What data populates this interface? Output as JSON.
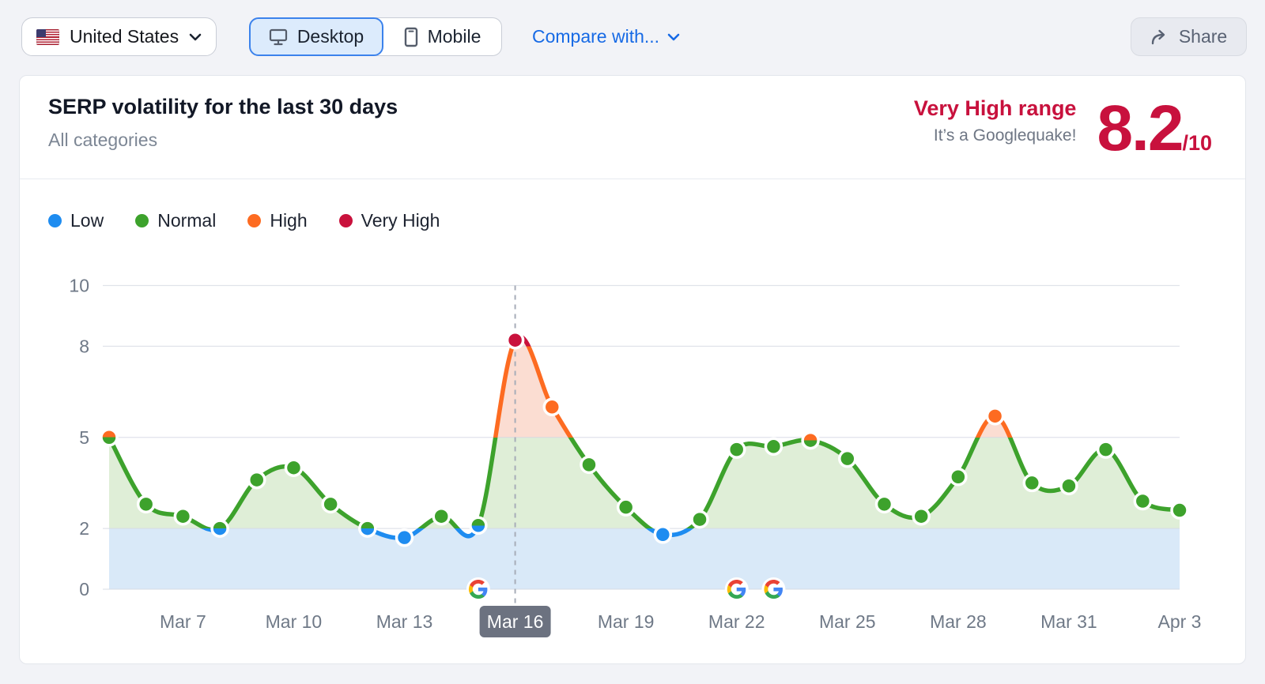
{
  "toolbar": {
    "country_label": "United States",
    "device_toggle": {
      "desktop_label": "Desktop",
      "mobile_label": "Mobile",
      "selected": "Desktop"
    },
    "compare_label": "Compare with...",
    "share_label": "Share"
  },
  "header": {
    "title": "SERP volatility for the last 30 days",
    "subtitle": "All categories",
    "range_label": "Very High range",
    "range_sublabel": "It’s a Googlequake!",
    "score": "8.2",
    "score_suffix": "/10"
  },
  "chart_data": {
    "type": "line",
    "title": "SERP volatility for the last 30 days",
    "x": [
      "Mar 5",
      "Mar 6",
      "Mar 7",
      "Mar 8",
      "Mar 9",
      "Mar 10",
      "Mar 11",
      "Mar 12",
      "Mar 13",
      "Mar 14",
      "Mar 15",
      "Mar 16",
      "Mar 17",
      "Mar 18",
      "Mar 19",
      "Mar 20",
      "Mar 21",
      "Mar 22",
      "Mar 23",
      "Mar 24",
      "Mar 25",
      "Mar 26",
      "Mar 27",
      "Mar 28",
      "Mar 29",
      "Mar 30",
      "Mar 31",
      "Apr 1",
      "Apr 2",
      "Apr 3"
    ],
    "values": [
      5.0,
      2.8,
      2.4,
      2.0,
      3.6,
      4.0,
      2.8,
      2.0,
      1.7,
      2.4,
      2.1,
      8.2,
      6.0,
      4.1,
      2.7,
      1.8,
      2.3,
      4.6,
      4.7,
      4.9,
      4.3,
      2.8,
      2.4,
      3.7,
      5.7,
      3.5,
      3.4,
      4.6,
      2.9,
      2.6
    ],
    "point_levels": [
      "orange/green",
      "green",
      "green",
      "green/blue",
      "green",
      "green",
      "green",
      "green/blue",
      "blue",
      "green",
      "green/blue",
      "red",
      "orange",
      "green",
      "green",
      "blue",
      "green",
      "green",
      "green",
      "orange/green",
      "green",
      "green",
      "green",
      "green",
      "orange",
      "green",
      "green",
      "green",
      "green",
      "green"
    ],
    "legend": [
      {
        "label": "Low",
        "color": "#1e8cf0"
      },
      {
        "label": "Normal",
        "color": "#3da22c"
      },
      {
        "label": "High",
        "color": "#fd6b21"
      },
      {
        "label": "Very High",
        "color": "#c9113c"
      }
    ],
    "y_ticks": [
      10,
      8,
      5,
      2,
      0
    ],
    "ylim": [
      0,
      10
    ],
    "x_tick_labels": [
      "Mar 7",
      "Mar 10",
      "Mar 13",
      "Mar 16",
      "Mar 19",
      "Mar 22",
      "Mar 25",
      "Mar 28",
      "Mar 31",
      "Apr 3"
    ],
    "highlighted_x_label": "Mar 16",
    "selected_point": {
      "date": "Mar 16",
      "value": 8.2
    },
    "google_update_dates": [
      "Mar 15",
      "Mar 22",
      "Mar 23"
    ],
    "bands": {
      "low": [
        0,
        2
      ],
      "normal": [
        2,
        5
      ],
      "high": [
        5,
        8
      ],
      "very_high": [
        8,
        10
      ]
    },
    "colors": {
      "line_blue": "#1e8cf0",
      "line_green": "#3da22c",
      "line_orange": "#fd6b21",
      "line_red": "#c9113c",
      "fill_blue": "#d9e9f8",
      "fill_green": "#dfeed7",
      "fill_pink": "#fbddd2",
      "gridline": "#d6dae3",
      "axis_label": "#6f7987",
      "badge_bg": "#6c7280",
      "badge_text": "#ffffff",
      "dashed_line": "#a7adb8"
    }
  }
}
